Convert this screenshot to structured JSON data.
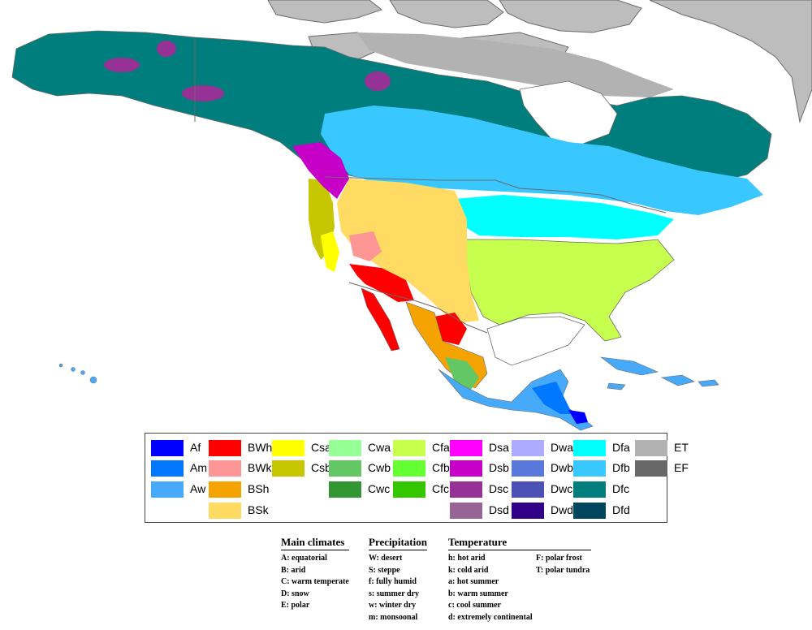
{
  "legend": {
    "colors": {
      "ocean": "#ffffff",
      "foreign_land": "#bdbdbd",
      "border": "#6a6a6a"
    },
    "items": [
      {
        "code": "Af",
        "color": "#0000fe",
        "col": 0,
        "row": 0
      },
      {
        "code": "Am",
        "color": "#0077ff",
        "col": 0,
        "row": 1
      },
      {
        "code": "Aw",
        "color": "#46a9fa",
        "col": 0,
        "row": 2
      },
      {
        "code": "BWh",
        "color": "#fe0000",
        "col": 1,
        "row": 0
      },
      {
        "code": "BWk",
        "color": "#fe9695",
        "col": 1,
        "row": 1
      },
      {
        "code": "BSh",
        "color": "#f5a301",
        "col": 1,
        "row": 2
      },
      {
        "code": "BSk",
        "color": "#ffdb63",
        "col": 1,
        "row": 3
      },
      {
        "code": "Csa",
        "color": "#ffff00",
        "col": 2,
        "row": 0
      },
      {
        "code": "Csb",
        "color": "#c6c700",
        "col": 2,
        "row": 1
      },
      {
        "code": "Cwa",
        "color": "#96ff96",
        "col": 3,
        "row": 0
      },
      {
        "code": "Cwb",
        "color": "#63c764",
        "col": 3,
        "row": 1
      },
      {
        "code": "Cwc",
        "color": "#329633",
        "col": 3,
        "row": 2
      },
      {
        "code": "Cfa",
        "color": "#c6ff4e",
        "col": 4,
        "row": 0
      },
      {
        "code": "Cfb",
        "color": "#66ff33",
        "col": 4,
        "row": 1
      },
      {
        "code": "Cfc",
        "color": "#33c701",
        "col": 4,
        "row": 2
      },
      {
        "code": "Dsa",
        "color": "#ff00fe",
        "col": 5,
        "row": 0
      },
      {
        "code": "Dsb",
        "color": "#c600c7",
        "col": 5,
        "row": 1
      },
      {
        "code": "Dsc",
        "color": "#963295",
        "col": 5,
        "row": 2
      },
      {
        "code": "Dsd",
        "color": "#966495",
        "col": 5,
        "row": 3
      },
      {
        "code": "Dwa",
        "color": "#ababff",
        "col": 6,
        "row": 0
      },
      {
        "code": "Dwb",
        "color": "#5a77db",
        "col": 6,
        "row": 1
      },
      {
        "code": "Dwc",
        "color": "#4c51b5",
        "col": 6,
        "row": 2
      },
      {
        "code": "Dwd",
        "color": "#320087",
        "col": 6,
        "row": 3
      },
      {
        "code": "Dfa",
        "color": "#00ffff",
        "col": 7,
        "row": 0
      },
      {
        "code": "Dfb",
        "color": "#38c7ff",
        "col": 7,
        "row": 1
      },
      {
        "code": "Dfc",
        "color": "#007e7d",
        "col": 7,
        "row": 2
      },
      {
        "code": "Dfd",
        "color": "#00455e",
        "col": 7,
        "row": 3
      },
      {
        "code": "ET",
        "color": "#b2b2b2",
        "col": 8,
        "row": 0
      },
      {
        "code": "EF",
        "color": "#686868",
        "col": 8,
        "row": 1
      }
    ]
  },
  "key": {
    "main_climates": {
      "title": "Main climates",
      "lines": [
        "A: equatorial",
        "B: arid",
        "C: warm temperate",
        "D: snow",
        "E: polar"
      ]
    },
    "precipitation": {
      "title": "Precipitation",
      "lines": [
        "W: desert",
        "S: steppe",
        "f: fully humid",
        "s: summer dry",
        "w: winter dry",
        "m: monsoonal"
      ]
    },
    "temperature": {
      "title": "Temperature",
      "lines_left": [
        "h: hot arid",
        "k: cold arid",
        "a: hot summer",
        "b: warm summer",
        "c: cool summer",
        "d: extremely continental"
      ],
      "lines_right": [
        "F: polar frost",
        "T: polar tundra"
      ]
    }
  }
}
